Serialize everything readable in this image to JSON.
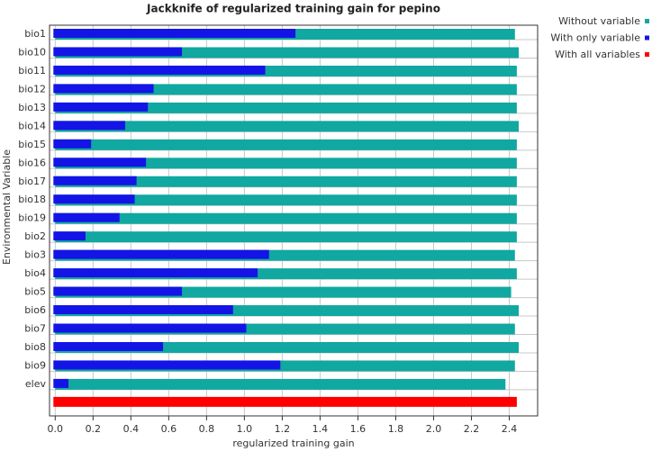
{
  "chart_data": {
    "type": "bar",
    "orientation": "horizontal",
    "title": "Jackknife of regularized training gain for pepino",
    "x_label": "regularized training gain",
    "y_label": "Environmental Variable",
    "categories": [
      "bio1",
      "bio10",
      "bio11",
      "bio12",
      "bio13",
      "bio14",
      "bio15",
      "bio16",
      "bio17",
      "bio18",
      "bio19",
      "bio2",
      "bio3",
      "bio4",
      "bio5",
      "bio6",
      "bio7",
      "bio8",
      "bio9",
      "elev"
    ],
    "series": [
      {
        "name": "Without variable",
        "color": "#10a8a0",
        "values": [
          2.43,
          2.45,
          2.44,
          2.44,
          2.44,
          2.45,
          2.44,
          2.44,
          2.44,
          2.44,
          2.44,
          2.44,
          2.43,
          2.44,
          2.41,
          2.45,
          2.43,
          2.45,
          2.43,
          2.38
        ]
      },
      {
        "name": "With only variable",
        "color": "#1414e6",
        "values": [
          1.27,
          0.67,
          1.11,
          0.52,
          0.49,
          0.37,
          0.19,
          0.48,
          0.43,
          0.42,
          0.34,
          0.16,
          1.13,
          1.07,
          0.67,
          0.94,
          1.01,
          0.57,
          1.19,
          0.07
        ]
      }
    ],
    "all_variables": {
      "name": "With all variables",
      "color": "#ff0000",
      "value": 2.44
    },
    "xlim": [
      -0.03,
      2.55
    ],
    "xticks": [
      {
        "value": 0,
        "label": "0.0"
      },
      {
        "value": 0.2,
        "label": "0.2"
      },
      {
        "value": 0.4,
        "label": "0.4"
      },
      {
        "value": 0.6,
        "label": "0.6"
      },
      {
        "value": 0.8,
        "label": "0.8"
      },
      {
        "value": 1,
        "label": "1.0"
      },
      {
        "value": 1.2,
        "label": "1.2"
      },
      {
        "value": 1.4,
        "label": "1.4"
      },
      {
        "value": 1.6,
        "label": "1.6"
      },
      {
        "value": 1.8,
        "label": "1.8"
      },
      {
        "value": 2,
        "label": "2.0"
      },
      {
        "value": 2.2,
        "label": "2.2"
      },
      {
        "value": 2.4,
        "label": "2.4"
      }
    ],
    "grid": true,
    "legend": "top-right"
  }
}
